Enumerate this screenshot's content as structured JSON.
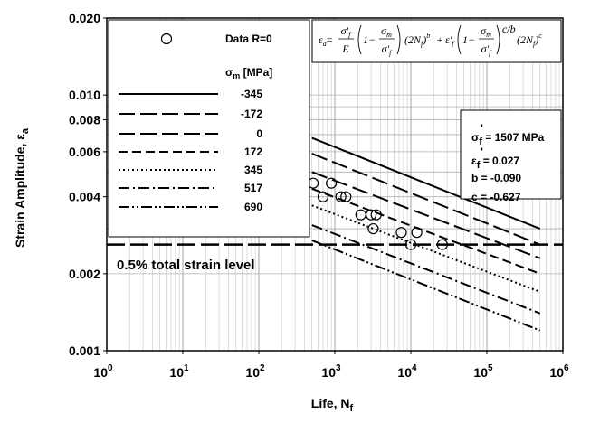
{
  "chart_data": {
    "type": "line",
    "xscale": "log",
    "yscale": "log",
    "xlim": [
      1,
      1000000
    ],
    "ylim": [
      0.001,
      0.02
    ],
    "grid": true,
    "xlabel": {
      "main": "Life, N",
      "sub": "f"
    },
    "ylabel": {
      "main": "Strain Amplitude, ε",
      "sub": "a"
    },
    "x_ticks": [
      {
        "value": 1,
        "base": "10",
        "exp": "0"
      },
      {
        "value": 10,
        "base": "10",
        "exp": "1"
      },
      {
        "value": 100,
        "base": "10",
        "exp": "2"
      },
      {
        "value": 1000,
        "base": "10",
        "exp": "3"
      },
      {
        "value": 10000,
        "base": "10",
        "exp": "4"
      },
      {
        "value": 100000,
        "base": "10",
        "exp": "5"
      },
      {
        "value": 1000000,
        "base": "10",
        "exp": "6"
      }
    ],
    "y_ticks": [
      {
        "value": 0.001,
        "label": "0.001"
      },
      {
        "value": 0.002,
        "label": "0.002"
      },
      {
        "value": 0.004,
        "label": "0.004"
      },
      {
        "value": 0.006,
        "label": "0.006"
      },
      {
        "value": 0.008,
        "label": "0.008"
      },
      {
        "value": 0.01,
        "label": "0.010"
      },
      {
        "value": 0.02,
        "label": "0.020"
      }
    ],
    "legend": {
      "placement": "top-left",
      "marker_label": "Data R=0",
      "header": {
        "main": "σ",
        "sub": "m",
        "rest": " [MPa]"
      },
      "entries": [
        "-345",
        "-172",
        "0",
        "172",
        "345",
        "517",
        "690"
      ]
    },
    "series": [
      {
        "name": "-345",
        "style": "solid",
        "x": [
          500,
          500000
        ],
        "y": [
          0.0068,
          0.003
        ]
      },
      {
        "name": "-172",
        "style": "longdash",
        "x": [
          500,
          500000
        ],
        "y": [
          0.0059,
          0.0026
        ]
      },
      {
        "name": "0",
        "style": "longdash",
        "x": [
          500,
          500000
        ],
        "y": [
          0.005,
          0.0023
        ]
      },
      {
        "name": "172",
        "style": "dash",
        "x": [
          500,
          500000
        ],
        "y": [
          0.0043,
          0.002
        ]
      },
      {
        "name": "345",
        "style": "dot",
        "x": [
          500,
          500000
        ],
        "y": [
          0.0037,
          0.0017
        ]
      },
      {
        "name": "517",
        "style": "dashdot",
        "x": [
          500,
          500000
        ],
        "y": [
          0.0031,
          0.0014
        ]
      },
      {
        "name": "690",
        "style": "dashdotdot",
        "x": [
          500,
          500000
        ],
        "y": [
          0.0027,
          0.0012
        ]
      }
    ],
    "data_points": {
      "name": "Data R=0",
      "x": [
        520,
        700,
        900,
        1200,
        1400,
        2200,
        3000,
        3500,
        3200,
        7500,
        10000,
        12000,
        26000
      ],
      "y": [
        0.00452,
        0.004,
        0.00452,
        0.004,
        0.004,
        0.0034,
        0.0034,
        0.0034,
        0.003,
        0.0029,
        0.0026,
        0.0029,
        0.0026
      ]
    },
    "reference_line": {
      "y": 0.0026,
      "label": "0.5% total strain level"
    },
    "equation": {
      "lhs": "ε",
      "lhs_sub": "a",
      "eq": "=",
      "f1_num": "σ'",
      "f1_num_sub": "f",
      "f1_den": "E",
      "b1_one": "1−",
      "b1_num": "σ",
      "b1_num_sub": "m",
      "b1_den": "σ'",
      "b1_den_sub": "f",
      "n1": "(2N",
      "n1_sub": "f",
      "n1_close": ")",
      "e1": "b",
      "plus": "+",
      "eps": "ε'",
      "eps_sub": "f",
      "b2_one": "1−",
      "b2_num": "σ",
      "b2_num_sub": "m",
      "b2_den": "σ'",
      "b2_den_sub": "f",
      "e2": "c/b",
      "n2": "(2N",
      "n2_sub": "f",
      "n2_close": ")",
      "e3": "c"
    },
    "parameters": [
      {
        "sym": "σ",
        "sub": "f",
        "prime": "'",
        "val": "= 1507 MPa"
      },
      {
        "sym": "ε",
        "sub": "f",
        "prime": "'",
        "val": "= 0.027"
      },
      {
        "sym": "b",
        "sub": "",
        "prime": "",
        "val": "= -0.090"
      },
      {
        "sym": "c",
        "sub": "",
        "prime": "",
        "val": "= -0.627"
      }
    ]
  }
}
